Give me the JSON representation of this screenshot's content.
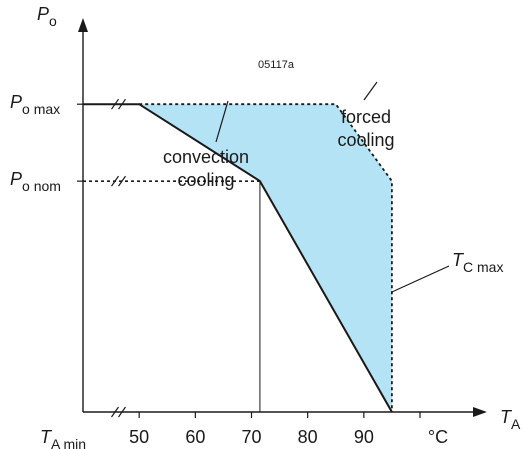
{
  "chart_data": {
    "type": "line",
    "figure_id": "05117a",
    "x_axis": {
      "symbol": "T",
      "subscript": "A",
      "unit": "°C",
      "tick_labels": [
        "50",
        "60",
        "70",
        "80",
        "90"
      ],
      "origin_label": {
        "symbol": "T",
        "subscript": "A min"
      },
      "range": [
        40,
        100
      ],
      "axis_break": true
    },
    "y_axis": {
      "symbol": "P",
      "subscript": "o",
      "tick_labels": [
        {
          "symbol": "P",
          "subscript": "o max",
          "value": 1.0
        },
        {
          "symbol": "P",
          "subscript": "o nom",
          "value": 0.75
        }
      ],
      "range": [
        0,
        1.28
      ],
      "axis_break": true
    },
    "series": [
      {
        "label_lines": [
          "convection",
          "cooling"
        ],
        "style": "solid",
        "points": [
          [
            40,
            1.0
          ],
          [
            50,
            1.0
          ],
          [
            71.5,
            0.75
          ],
          [
            95,
            0.0
          ]
        ]
      },
      {
        "label_lines": [
          "forced",
          "cooling"
        ],
        "style": "dashed",
        "points": [
          [
            50,
            1.0
          ],
          [
            85,
            1.0
          ],
          [
            95,
            0.75
          ],
          [
            95,
            0.0
          ]
        ]
      }
    ],
    "reference_lines": [
      {
        "kind": "horizontal",
        "style": "dashed",
        "y": 0.75,
        "from_x": 40,
        "to_x": 71.5
      },
      {
        "kind": "vertical",
        "style": "thin",
        "x": 71.5,
        "from_y": 0.0,
        "to_y": 0.75
      }
    ],
    "shaded_region": {
      "color": "#b3e3f5",
      "between": [
        "convection cooling",
        "forced cooling"
      ]
    },
    "annotation": {
      "symbol": "T",
      "subscript": "C max",
      "x": 95
    },
    "grid": false,
    "legend": "none",
    "colors": {
      "line": "#1a1a1a",
      "fill": "#b3e3f5"
    }
  }
}
